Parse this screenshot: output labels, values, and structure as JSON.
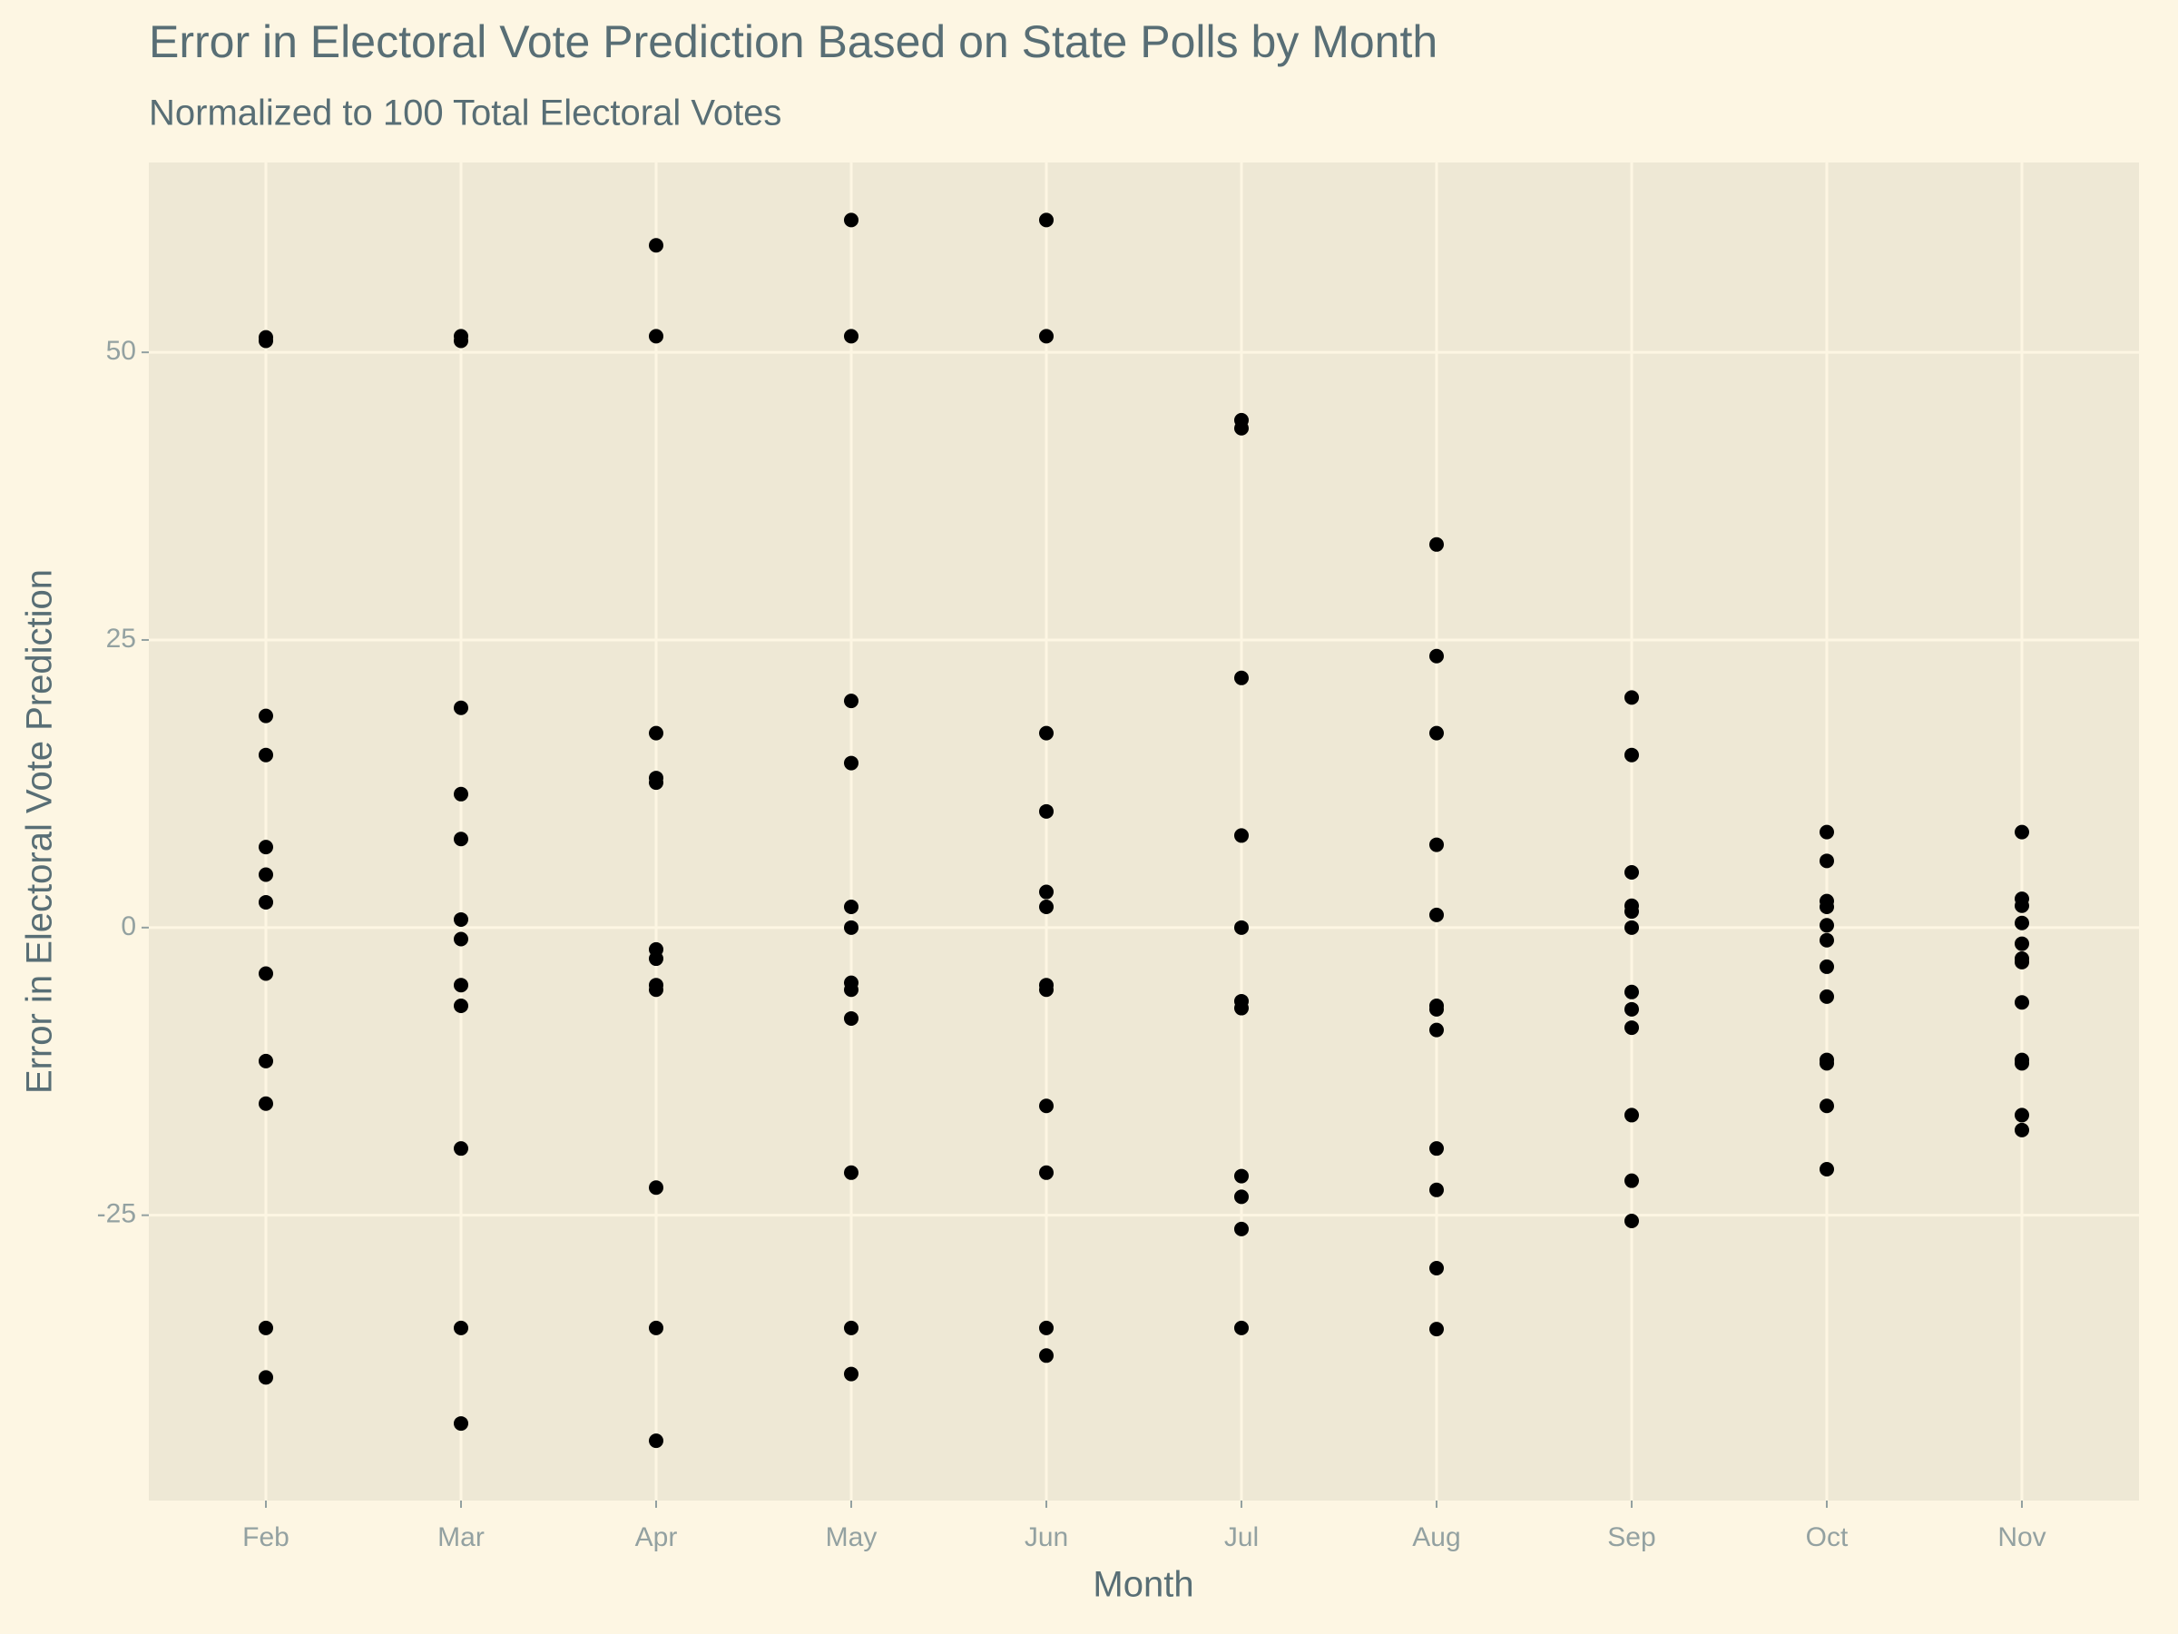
{
  "chart_data": {
    "type": "scatter",
    "title": "Error in Electoral Vote Prediction Based on State Polls by Month",
    "subtitle": "Normalized to 100 Total Electoral Votes",
    "x_label": "Month",
    "y_label": "Error in Electoral Vote Prediction",
    "categories": [
      "Feb",
      "Mar",
      "Apr",
      "May",
      "Jun",
      "Jul",
      "Aug",
      "Sep",
      "Oct",
      "Nov"
    ],
    "values": [
      [
        51.3,
        51.0,
        18.4,
        15.0,
        7.0,
        4.6,
        2.2,
        -4.0,
        -11.6,
        -15.3,
        -34.8,
        -39.1
      ],
      [
        51.4,
        51.0,
        19.1,
        11.6,
        7.7,
        0.7,
        -1.0,
        -5.0,
        -6.8,
        -19.2,
        -34.8,
        -43.1
      ],
      [
        59.3,
        51.4,
        16.9,
        13.0,
        12.6,
        -1.9,
        -2.7,
        -5.0,
        -5.4,
        -22.6,
        -34.8,
        -44.6
      ],
      [
        61.5,
        51.4,
        19.7,
        14.3,
        1.8,
        0,
        -4.8,
        -5.4,
        -7.9,
        -21.3,
        -34.8,
        -38.8
      ],
      [
        61.5,
        51.4,
        16.9,
        10.1,
        3.1,
        1.8,
        -5.0,
        -5.4,
        -15.5,
        -21.3,
        -34.8,
        -37.2
      ],
      [
        44.1,
        43.4,
        21.7,
        8.0,
        0,
        -6.4,
        -7.0,
        -21.6,
        -23.4,
        -26.2,
        -34.8
      ],
      [
        33.3,
        23.6,
        16.9,
        7.2,
        1.1,
        -6.8,
        -7.1,
        -8.9,
        -19.2,
        -22.8,
        -29.6,
        -34.9
      ],
      [
        20.0,
        15.0,
        4.8,
        1.9,
        1.4,
        0,
        -5.6,
        -7.1,
        -8.7,
        -16.3,
        -22.0,
        -25.5
      ],
      [
        8.3,
        5.8,
        2.3,
        1.8,
        0.2,
        -1.1,
        -3.4,
        -6.0,
        -11.5,
        -11.8,
        -15.5,
        -21.0
      ],
      [
        8.3,
        2.5,
        1.9,
        0.4,
        -1.4,
        -2.7,
        -3.0,
        -6.5,
        -11.5,
        -11.8,
        -16.3,
        -17.6
      ]
    ],
    "color": "#000000",
    "ylim": [
      -49.8,
      66.5
    ],
    "yticks": [
      -25,
      0,
      25,
      50
    ],
    "grid": true
  }
}
